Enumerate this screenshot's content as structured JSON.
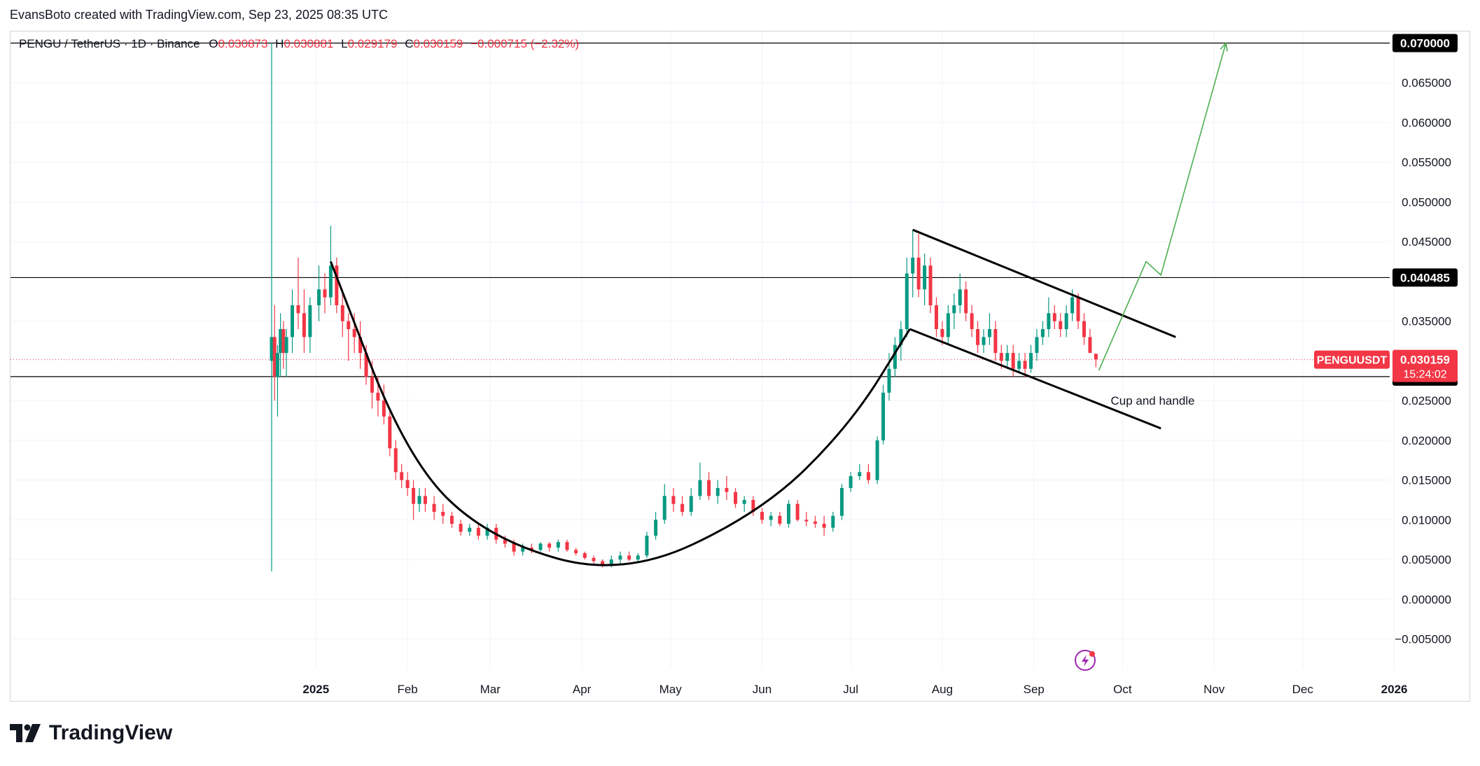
{
  "credit": "EvansBoto created with TradingView.com, Sep 23, 2025 08:35 UTC",
  "legend": {
    "symbol": "PENGU / TetherUS · 1D · Binance",
    "o_label": "O",
    "o_val": "0.030873",
    "h_label": "H",
    "h_val": "0.030881",
    "l_label": "L",
    "l_val": "0.029179",
    "c_label": "C",
    "c_val": "0.030159",
    "change": "−0.000715 (−2.32%)"
  },
  "price_tags": {
    "target": "0.070000",
    "resistance": "0.040485",
    "support": "0.028021",
    "symbol": "PENGUUSDT",
    "last": "0.030159",
    "countdown": "15:24:02"
  },
  "annotation": "Cup and handle",
  "logo": "TradingView",
  "colors": {
    "up": "#089981",
    "down": "#f23645",
    "projection": "#4caf50",
    "pattern": "#000000",
    "tag_bg": "#000000",
    "last_bg": "#f23645"
  },
  "chart_data": {
    "type": "candlestick",
    "title": "PENGU / TetherUS · 1D · Binance",
    "y_axis_ticks": [
      "0.065000",
      "0.060000",
      "0.055000",
      "0.050000",
      "0.045000",
      "0.035000",
      "0.025000",
      "0.020000",
      "0.015000",
      "0.010000",
      "0.005000",
      "0.000000",
      "−0.005000"
    ],
    "x_axis_ticks": [
      "2025",
      "Feb",
      "Mar",
      "Apr",
      "May",
      "Jun",
      "Jul",
      "Aug",
      "Sep",
      "Oct",
      "Nov",
      "Dec",
      "2026"
    ],
    "ylim": [
      -0.0075,
      0.072
    ],
    "x_start": "2024-12-17",
    "horizontal_levels": [
      0.07,
      0.040485,
      0.028021
    ],
    "last_price": 0.030159,
    "series": [
      {
        "name": "PENGUUSDT",
        "points": [
          [
            "2024-12-17",
            0.03,
            0.07,
            0.0035,
            0.033
          ],
          [
            "2024-12-18",
            0.033,
            0.037,
            0.025,
            0.028
          ],
          [
            "2024-12-19",
            0.028,
            0.032,
            0.023,
            0.031
          ],
          [
            "2024-12-20",
            0.031,
            0.036,
            0.028,
            0.034
          ],
          [
            "2024-12-21",
            0.034,
            0.035,
            0.029,
            0.031
          ],
          [
            "2024-12-22",
            0.031,
            0.034,
            0.028,
            0.033
          ],
          [
            "2024-12-24",
            0.033,
            0.039,
            0.031,
            0.037
          ],
          [
            "2024-12-26",
            0.037,
            0.043,
            0.034,
            0.036
          ],
          [
            "2024-12-28",
            0.036,
            0.039,
            0.031,
            0.033
          ],
          [
            "2024-12-30",
            0.033,
            0.038,
            0.031,
            0.037
          ],
          [
            "2025-01-02",
            0.037,
            0.042,
            0.035,
            0.039
          ],
          [
            "2025-01-04",
            0.039,
            0.041,
            0.036,
            0.038
          ],
          [
            "2025-01-06",
            0.038,
            0.047,
            0.037,
            0.042
          ],
          [
            "2025-01-08",
            0.042,
            0.043,
            0.036,
            0.037
          ],
          [
            "2025-01-10",
            0.037,
            0.039,
            0.033,
            0.035
          ],
          [
            "2025-01-12",
            0.035,
            0.036,
            0.03,
            0.034
          ],
          [
            "2025-01-14",
            0.034,
            0.036,
            0.031,
            0.033
          ],
          [
            "2025-01-16",
            0.033,
            0.035,
            0.029,
            0.031
          ],
          [
            "2025-01-18",
            0.031,
            0.032,
            0.027,
            0.028
          ],
          [
            "2025-01-20",
            0.028,
            0.03,
            0.024,
            0.026
          ],
          [
            "2025-01-22",
            0.026,
            0.028,
            0.023,
            0.025
          ],
          [
            "2025-01-24",
            0.025,
            0.027,
            0.022,
            0.023
          ],
          [
            "2025-01-26",
            0.023,
            0.024,
            0.018,
            0.019
          ],
          [
            "2025-01-28",
            0.019,
            0.02,
            0.015,
            0.016
          ],
          [
            "2025-01-30",
            0.016,
            0.017,
            0.014,
            0.015
          ],
          [
            "2025-02-01",
            0.015,
            0.016,
            0.013,
            0.014
          ],
          [
            "2025-02-03",
            0.014,
            0.015,
            0.01,
            0.012
          ],
          [
            "2025-02-05",
            0.012,
            0.014,
            0.011,
            0.013
          ],
          [
            "2025-02-07",
            0.013,
            0.014,
            0.011,
            0.012
          ],
          [
            "2025-02-10",
            0.012,
            0.013,
            0.01,
            0.011
          ],
          [
            "2025-02-13",
            0.011,
            0.012,
            0.0095,
            0.0105
          ],
          [
            "2025-02-16",
            0.0105,
            0.011,
            0.009,
            0.0095
          ],
          [
            "2025-02-19",
            0.0095,
            0.01,
            0.008,
            0.0085
          ],
          [
            "2025-02-22",
            0.0085,
            0.0095,
            0.008,
            0.009
          ],
          [
            "2025-02-25",
            0.009,
            0.0095,
            0.0075,
            0.008
          ],
          [
            "2025-02-28",
            0.008,
            0.0095,
            0.0075,
            0.009
          ],
          [
            "2025-03-03",
            0.009,
            0.0095,
            0.007,
            0.0075
          ],
          [
            "2025-03-06",
            0.0075,
            0.008,
            0.0065,
            0.007
          ],
          [
            "2025-03-09",
            0.007,
            0.0075,
            0.0055,
            0.006
          ],
          [
            "2025-03-12",
            0.006,
            0.007,
            0.0055,
            0.0065
          ],
          [
            "2025-03-15",
            0.0065,
            0.007,
            0.0058,
            0.0062
          ],
          [
            "2025-03-18",
            0.0062,
            0.0072,
            0.006,
            0.007
          ],
          [
            "2025-03-21",
            0.007,
            0.0072,
            0.006,
            0.0065
          ],
          [
            "2025-03-24",
            0.0065,
            0.0075,
            0.006,
            0.0072
          ],
          [
            "2025-03-27",
            0.0072,
            0.0075,
            0.006,
            0.0062
          ],
          [
            "2025-03-30",
            0.0062,
            0.0065,
            0.0055,
            0.0058
          ],
          [
            "2025-04-02",
            0.0058,
            0.006,
            0.005,
            0.0052
          ],
          [
            "2025-04-05",
            0.0052,
            0.0055,
            0.0045,
            0.0048
          ],
          [
            "2025-04-08",
            0.0048,
            0.005,
            0.004,
            0.0042
          ],
          [
            "2025-04-11",
            0.0042,
            0.0055,
            0.004,
            0.005
          ],
          [
            "2025-04-14",
            0.005,
            0.006,
            0.0045,
            0.0055
          ],
          [
            "2025-04-17",
            0.0055,
            0.006,
            0.0048,
            0.005
          ],
          [
            "2025-04-20",
            0.005,
            0.0058,
            0.0048,
            0.0055
          ],
          [
            "2025-04-23",
            0.0055,
            0.0085,
            0.0052,
            0.008
          ],
          [
            "2025-04-26",
            0.008,
            0.011,
            0.0075,
            0.01
          ],
          [
            "2025-04-29",
            0.01,
            0.0145,
            0.0095,
            0.013
          ],
          [
            "2025-05-02",
            0.013,
            0.014,
            0.011,
            0.012
          ],
          [
            "2025-05-05",
            0.012,
            0.013,
            0.0105,
            0.011
          ],
          [
            "2025-05-08",
            0.011,
            0.014,
            0.0105,
            0.013
          ],
          [
            "2025-05-11",
            0.013,
            0.0172,
            0.0125,
            0.015
          ],
          [
            "2025-05-14",
            0.015,
            0.016,
            0.0125,
            0.013
          ],
          [
            "2025-05-17",
            0.013,
            0.015,
            0.012,
            0.014
          ],
          [
            "2025-05-20",
            0.014,
            0.0155,
            0.0125,
            0.0135
          ],
          [
            "2025-05-23",
            0.0135,
            0.014,
            0.0115,
            0.012
          ],
          [
            "2025-05-26",
            0.012,
            0.013,
            0.011,
            0.0125
          ],
          [
            "2025-05-29",
            0.0125,
            0.013,
            0.0105,
            0.011
          ],
          [
            "2025-06-01",
            0.011,
            0.0115,
            0.0095,
            0.01
          ],
          [
            "2025-06-04",
            0.01,
            0.011,
            0.0092,
            0.0105
          ],
          [
            "2025-06-07",
            0.0105,
            0.011,
            0.0092,
            0.0095
          ],
          [
            "2025-06-10",
            0.0095,
            0.0125,
            0.009,
            0.012
          ],
          [
            "2025-06-13",
            0.012,
            0.0125,
            0.0098,
            0.01
          ],
          [
            "2025-06-16",
            0.01,
            0.011,
            0.0092,
            0.0098
          ],
          [
            "2025-06-19",
            0.0098,
            0.0105,
            0.009,
            0.0095
          ],
          [
            "2025-06-22",
            0.0095,
            0.0105,
            0.008,
            0.009
          ],
          [
            "2025-06-25",
            0.009,
            0.011,
            0.0085,
            0.0105
          ],
          [
            "2025-06-28",
            0.0105,
            0.0145,
            0.01,
            0.014
          ],
          [
            "2025-07-01",
            0.014,
            0.016,
            0.0135,
            0.0155
          ],
          [
            "2025-07-04",
            0.0155,
            0.017,
            0.015,
            0.016
          ],
          [
            "2025-07-07",
            0.016,
            0.017,
            0.0145,
            0.015
          ],
          [
            "2025-07-10",
            0.015,
            0.0205,
            0.0145,
            0.02
          ],
          [
            "2025-07-12",
            0.02,
            0.027,
            0.0195,
            0.026
          ],
          [
            "2025-07-14",
            0.026,
            0.031,
            0.025,
            0.029
          ],
          [
            "2025-07-16",
            0.029,
            0.033,
            0.028,
            0.032
          ],
          [
            "2025-07-18",
            0.032,
            0.035,
            0.03,
            0.034
          ],
          [
            "2025-07-20",
            0.034,
            0.043,
            0.033,
            0.041
          ],
          [
            "2025-07-22",
            0.041,
            0.0465,
            0.038,
            0.043
          ],
          [
            "2025-07-24",
            0.043,
            0.046,
            0.038,
            0.039
          ],
          [
            "2025-07-26",
            0.039,
            0.0435,
            0.037,
            0.042
          ],
          [
            "2025-07-28",
            0.042,
            0.043,
            0.036,
            0.037
          ],
          [
            "2025-07-30",
            0.037,
            0.038,
            0.033,
            0.034
          ],
          [
            "2025-08-01",
            0.034,
            0.035,
            0.032,
            0.033
          ],
          [
            "2025-08-03",
            0.033,
            0.037,
            0.032,
            0.036
          ],
          [
            "2025-08-05",
            0.036,
            0.0385,
            0.034,
            0.037
          ],
          [
            "2025-08-07",
            0.037,
            0.041,
            0.036,
            0.039
          ],
          [
            "2025-08-09",
            0.039,
            0.04,
            0.035,
            0.036
          ],
          [
            "2025-08-11",
            0.036,
            0.037,
            0.033,
            0.034
          ],
          [
            "2025-08-13",
            0.034,
            0.035,
            0.031,
            0.032
          ],
          [
            "2025-08-15",
            0.032,
            0.034,
            0.031,
            0.033
          ],
          [
            "2025-08-17",
            0.033,
            0.036,
            0.032,
            0.034
          ],
          [
            "2025-08-19",
            0.034,
            0.035,
            0.03,
            0.031
          ],
          [
            "2025-08-21",
            0.031,
            0.032,
            0.029,
            0.03
          ],
          [
            "2025-08-23",
            0.03,
            0.032,
            0.029,
            0.031
          ],
          [
            "2025-08-25",
            0.031,
            0.032,
            0.028,
            0.029
          ],
          [
            "2025-08-27",
            0.029,
            0.031,
            0.0285,
            0.03
          ],
          [
            "2025-08-29",
            0.03,
            0.031,
            0.028,
            0.029
          ],
          [
            "2025-08-31",
            0.029,
            0.032,
            0.0285,
            0.031
          ],
          [
            "2025-09-02",
            0.031,
            0.034,
            0.03,
            0.033
          ],
          [
            "2025-09-04",
            0.033,
            0.035,
            0.032,
            0.034
          ],
          [
            "2025-09-06",
            0.034,
            0.038,
            0.033,
            0.036
          ],
          [
            "2025-09-08",
            0.036,
            0.037,
            0.034,
            0.035
          ],
          [
            "2025-09-10",
            0.035,
            0.036,
            0.033,
            0.034
          ],
          [
            "2025-09-12",
            0.034,
            0.037,
            0.033,
            0.036
          ],
          [
            "2025-09-14",
            0.036,
            0.039,
            0.035,
            0.038
          ],
          [
            "2025-09-16",
            0.038,
            0.0385,
            0.034,
            0.035
          ],
          [
            "2025-09-18",
            0.035,
            0.036,
            0.032,
            0.033
          ],
          [
            "2025-09-20",
            0.033,
            0.034,
            0.031,
            0.031
          ],
          [
            "2025-09-22",
            0.0309,
            0.0309,
            0.0292,
            0.0302
          ]
        ]
      }
    ],
    "annotations": [
      {
        "type": "cup_curve",
        "points": [
          [
            "2025-01-06",
            0.0425
          ],
          [
            "2025-02-01",
            0.0175
          ],
          [
            "2025-03-01",
            0.0075
          ],
          [
            "2025-04-15",
            0.0028
          ],
          [
            "2025-06-01",
            0.011
          ],
          [
            "2025-07-01",
            0.022
          ],
          [
            "2025-07-21",
            0.034
          ]
        ]
      },
      {
        "type": "channel_upper",
        "points": [
          [
            "2025-07-22",
            0.0465
          ],
          [
            "2025-10-19",
            0.033
          ]
        ]
      },
      {
        "type": "channel_lower",
        "points": [
          [
            "2025-07-21",
            0.034
          ],
          [
            "2025-10-14",
            0.0215
          ]
        ]
      },
      {
        "type": "projection",
        "points": [
          [
            "2025-09-23",
            0.0288
          ],
          [
            "2025-10-09",
            0.0425
          ],
          [
            "2025-10-14",
            0.0408
          ],
          [
            "2025-11-05",
            0.07
          ]
        ]
      },
      {
        "type": "label",
        "text": "Cup and handle",
        "at": [
          "2025-09-27",
          0.0245
        ]
      }
    ]
  }
}
